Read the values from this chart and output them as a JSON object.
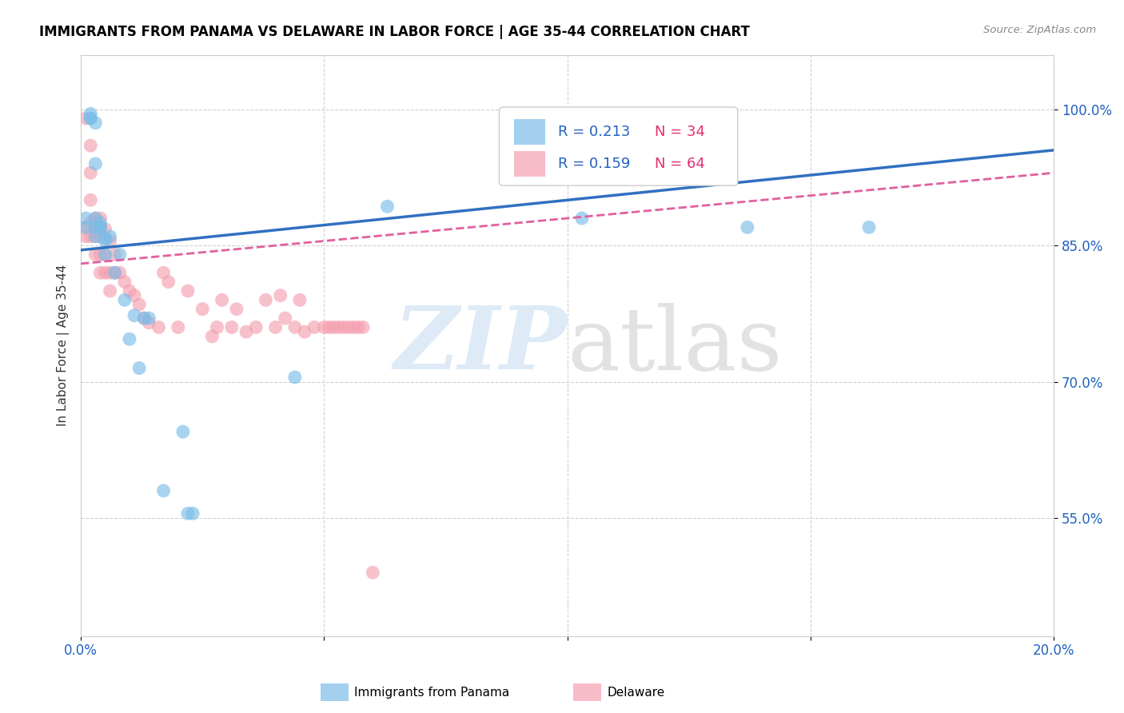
{
  "title": "IMMIGRANTS FROM PANAMA VS DELAWARE IN LABOR FORCE | AGE 35-44 CORRELATION CHART",
  "source": "Source: ZipAtlas.com",
  "ylabel": "In Labor Force | Age 35-44",
  "xlim": [
    0.0,
    0.2
  ],
  "ylim": [
    0.42,
    1.06
  ],
  "legend_r1": "R = 0.213",
  "legend_n1": "N = 34",
  "legend_r2": "R = 0.159",
  "legend_n2": "N = 64",
  "series1_color": "#7bbde8",
  "series2_color": "#f4a0b0",
  "trendline1_color": "#3070c0",
  "trendline2_color": "#e060a0",
  "blue_points_x": [
    0.001,
    0.001,
    0.002,
    0.002,
    0.002,
    0.003,
    0.003,
    0.003,
    0.003,
    0.003,
    0.004,
    0.004,
    0.004,
    0.005,
    0.005,
    0.005,
    0.006,
    0.007,
    0.008,
    0.009,
    0.01,
    0.011,
    0.012,
    0.013,
    0.014,
    0.017,
    0.021,
    0.022,
    0.023,
    0.044,
    0.063,
    0.103,
    0.137,
    0.162
  ],
  "blue_points_y": [
    0.87,
    0.88,
    0.99,
    0.995,
    0.99,
    0.985,
    0.94,
    0.88,
    0.87,
    0.86,
    0.875,
    0.87,
    0.87,
    0.858,
    0.855,
    0.84,
    0.86,
    0.82,
    0.84,
    0.79,
    0.747,
    0.773,
    0.715,
    0.77,
    0.77,
    0.58,
    0.645,
    0.555,
    0.555,
    0.705,
    0.893,
    0.88,
    0.87,
    0.87
  ],
  "pink_points_x": [
    0.001,
    0.001,
    0.001,
    0.002,
    0.002,
    0.002,
    0.002,
    0.002,
    0.003,
    0.003,
    0.003,
    0.003,
    0.003,
    0.004,
    0.004,
    0.004,
    0.004,
    0.004,
    0.005,
    0.005,
    0.005,
    0.006,
    0.006,
    0.006,
    0.007,
    0.007,
    0.008,
    0.009,
    0.01,
    0.011,
    0.012,
    0.013,
    0.014,
    0.016,
    0.017,
    0.018,
    0.02,
    0.022,
    0.025,
    0.027,
    0.028,
    0.029,
    0.031,
    0.032,
    0.034,
    0.036,
    0.038,
    0.04,
    0.041,
    0.042,
    0.044,
    0.045,
    0.046,
    0.048,
    0.05,
    0.051,
    0.052,
    0.053,
    0.054,
    0.055,
    0.056,
    0.057,
    0.058,
    0.06
  ],
  "pink_points_y": [
    0.99,
    0.87,
    0.86,
    0.96,
    0.93,
    0.9,
    0.875,
    0.86,
    0.88,
    0.87,
    0.87,
    0.86,
    0.84,
    0.88,
    0.87,
    0.86,
    0.84,
    0.82,
    0.868,
    0.84,
    0.82,
    0.855,
    0.82,
    0.8,
    0.84,
    0.82,
    0.82,
    0.81,
    0.8,
    0.795,
    0.785,
    0.77,
    0.765,
    0.76,
    0.82,
    0.81,
    0.76,
    0.8,
    0.78,
    0.75,
    0.76,
    0.79,
    0.76,
    0.78,
    0.755,
    0.76,
    0.79,
    0.76,
    0.795,
    0.77,
    0.76,
    0.79,
    0.755,
    0.76,
    0.76,
    0.76,
    0.76,
    0.76,
    0.76,
    0.76,
    0.76,
    0.76,
    0.76,
    0.49
  ],
  "trendline1_x": [
    0.0,
    0.2
  ],
  "trendline1_y": [
    0.845,
    0.955
  ],
  "trendline2_x": [
    0.0,
    0.2
  ],
  "trendline2_y": [
    0.83,
    0.93
  ],
  "xtick_positions": [
    0.0,
    0.05,
    0.1,
    0.15,
    0.2
  ],
  "xtick_labels": [
    "0.0%",
    "",
    "",
    "",
    "20.0%"
  ],
  "ytick_positions": [
    0.55,
    0.7,
    0.85,
    1.0
  ],
  "ytick_labels": [
    "55.0%",
    "70.0%",
    "85.0%",
    "100.0%"
  ]
}
